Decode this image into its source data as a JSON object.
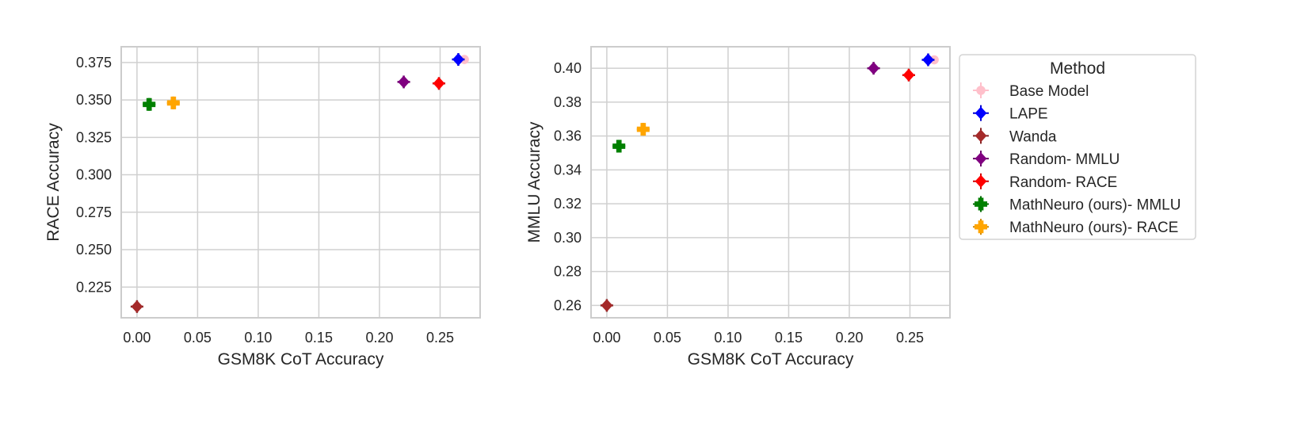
{
  "legend": {
    "title": "Method",
    "entries": [
      {
        "label": "Base Model",
        "color": "#ffc0cb",
        "marker": "circle"
      },
      {
        "label": "LAPE",
        "color": "#0000ff",
        "marker": "diamond"
      },
      {
        "label": "Wanda",
        "color": "#a52a2a",
        "marker": "diamond"
      },
      {
        "label": "Random- MMLU",
        "color": "#800080",
        "marker": "diamond"
      },
      {
        "label": "Random- RACE",
        "color": "#ff0000",
        "marker": "diamond"
      },
      {
        "label": "MathNeuro (ours)- MMLU",
        "color": "#008000",
        "marker": "plus"
      },
      {
        "label": "MathNeuro (ours)- RACE",
        "color": "#ffa500",
        "marker": "plus"
      }
    ]
  },
  "chart_data": [
    {
      "type": "scatter",
      "xlabel": "GSM8K CoT Accuracy",
      "ylabel": "RACE Accuracy",
      "xlim": [
        -0.013,
        0.283
      ],
      "ylim": [
        0.2045,
        0.3855
      ],
      "xticks": [
        "0.00",
        "0.05",
        "0.10",
        "0.15",
        "0.20",
        "0.25"
      ],
      "xtick_values": [
        0.0,
        0.05,
        0.1,
        0.15,
        0.2,
        0.25
      ],
      "yticks": [
        "0.225",
        "0.250",
        "0.275",
        "0.300",
        "0.325",
        "0.350",
        "0.375"
      ],
      "ytick_values": [
        0.225,
        0.25,
        0.275,
        0.3,
        0.325,
        0.35,
        0.375
      ],
      "grid": true,
      "points": [
        {
          "series": "Base Model",
          "x": 0.27,
          "y": 0.377
        },
        {
          "series": "LAPE",
          "x": 0.265,
          "y": 0.377
        },
        {
          "series": "Wanda",
          "x": 0.0,
          "y": 0.212
        },
        {
          "series": "Random- MMLU",
          "x": 0.22,
          "y": 0.362
        },
        {
          "series": "Random- RACE",
          "x": 0.249,
          "y": 0.361
        },
        {
          "series": "MathNeuro (ours)- MMLU",
          "x": 0.01,
          "y": 0.347
        },
        {
          "series": "MathNeuro (ours)- RACE",
          "x": 0.03,
          "y": 0.348
        }
      ]
    },
    {
      "type": "scatter",
      "xlabel": "GSM8K CoT Accuracy",
      "ylabel": "MMLU Accuracy",
      "xlim": [
        -0.013,
        0.283
      ],
      "ylim": [
        0.2527,
        0.4127
      ],
      "xticks": [
        "0.00",
        "0.05",
        "0.10",
        "0.15",
        "0.20",
        "0.25"
      ],
      "xtick_values": [
        0.0,
        0.05,
        0.1,
        0.15,
        0.2,
        0.25
      ],
      "yticks": [
        "0.26",
        "0.28",
        "0.30",
        "0.32",
        "0.34",
        "0.36",
        "0.38",
        "0.40"
      ],
      "ytick_values": [
        0.26,
        0.28,
        0.3,
        0.32,
        0.34,
        0.36,
        0.38,
        0.4
      ],
      "grid": true,
      "points": [
        {
          "series": "Base Model",
          "x": 0.27,
          "y": 0.405
        },
        {
          "series": "LAPE",
          "x": 0.265,
          "y": 0.405
        },
        {
          "series": "Wanda",
          "x": 0.0,
          "y": 0.26
        },
        {
          "series": "Random- MMLU",
          "x": 0.22,
          "y": 0.4
        },
        {
          "series": "Random- RACE",
          "x": 0.249,
          "y": 0.396
        },
        {
          "series": "MathNeuro (ours)- MMLU",
          "x": 0.01,
          "y": 0.354
        },
        {
          "series": "MathNeuro (ours)- RACE",
          "x": 0.03,
          "y": 0.364
        }
      ]
    }
  ]
}
